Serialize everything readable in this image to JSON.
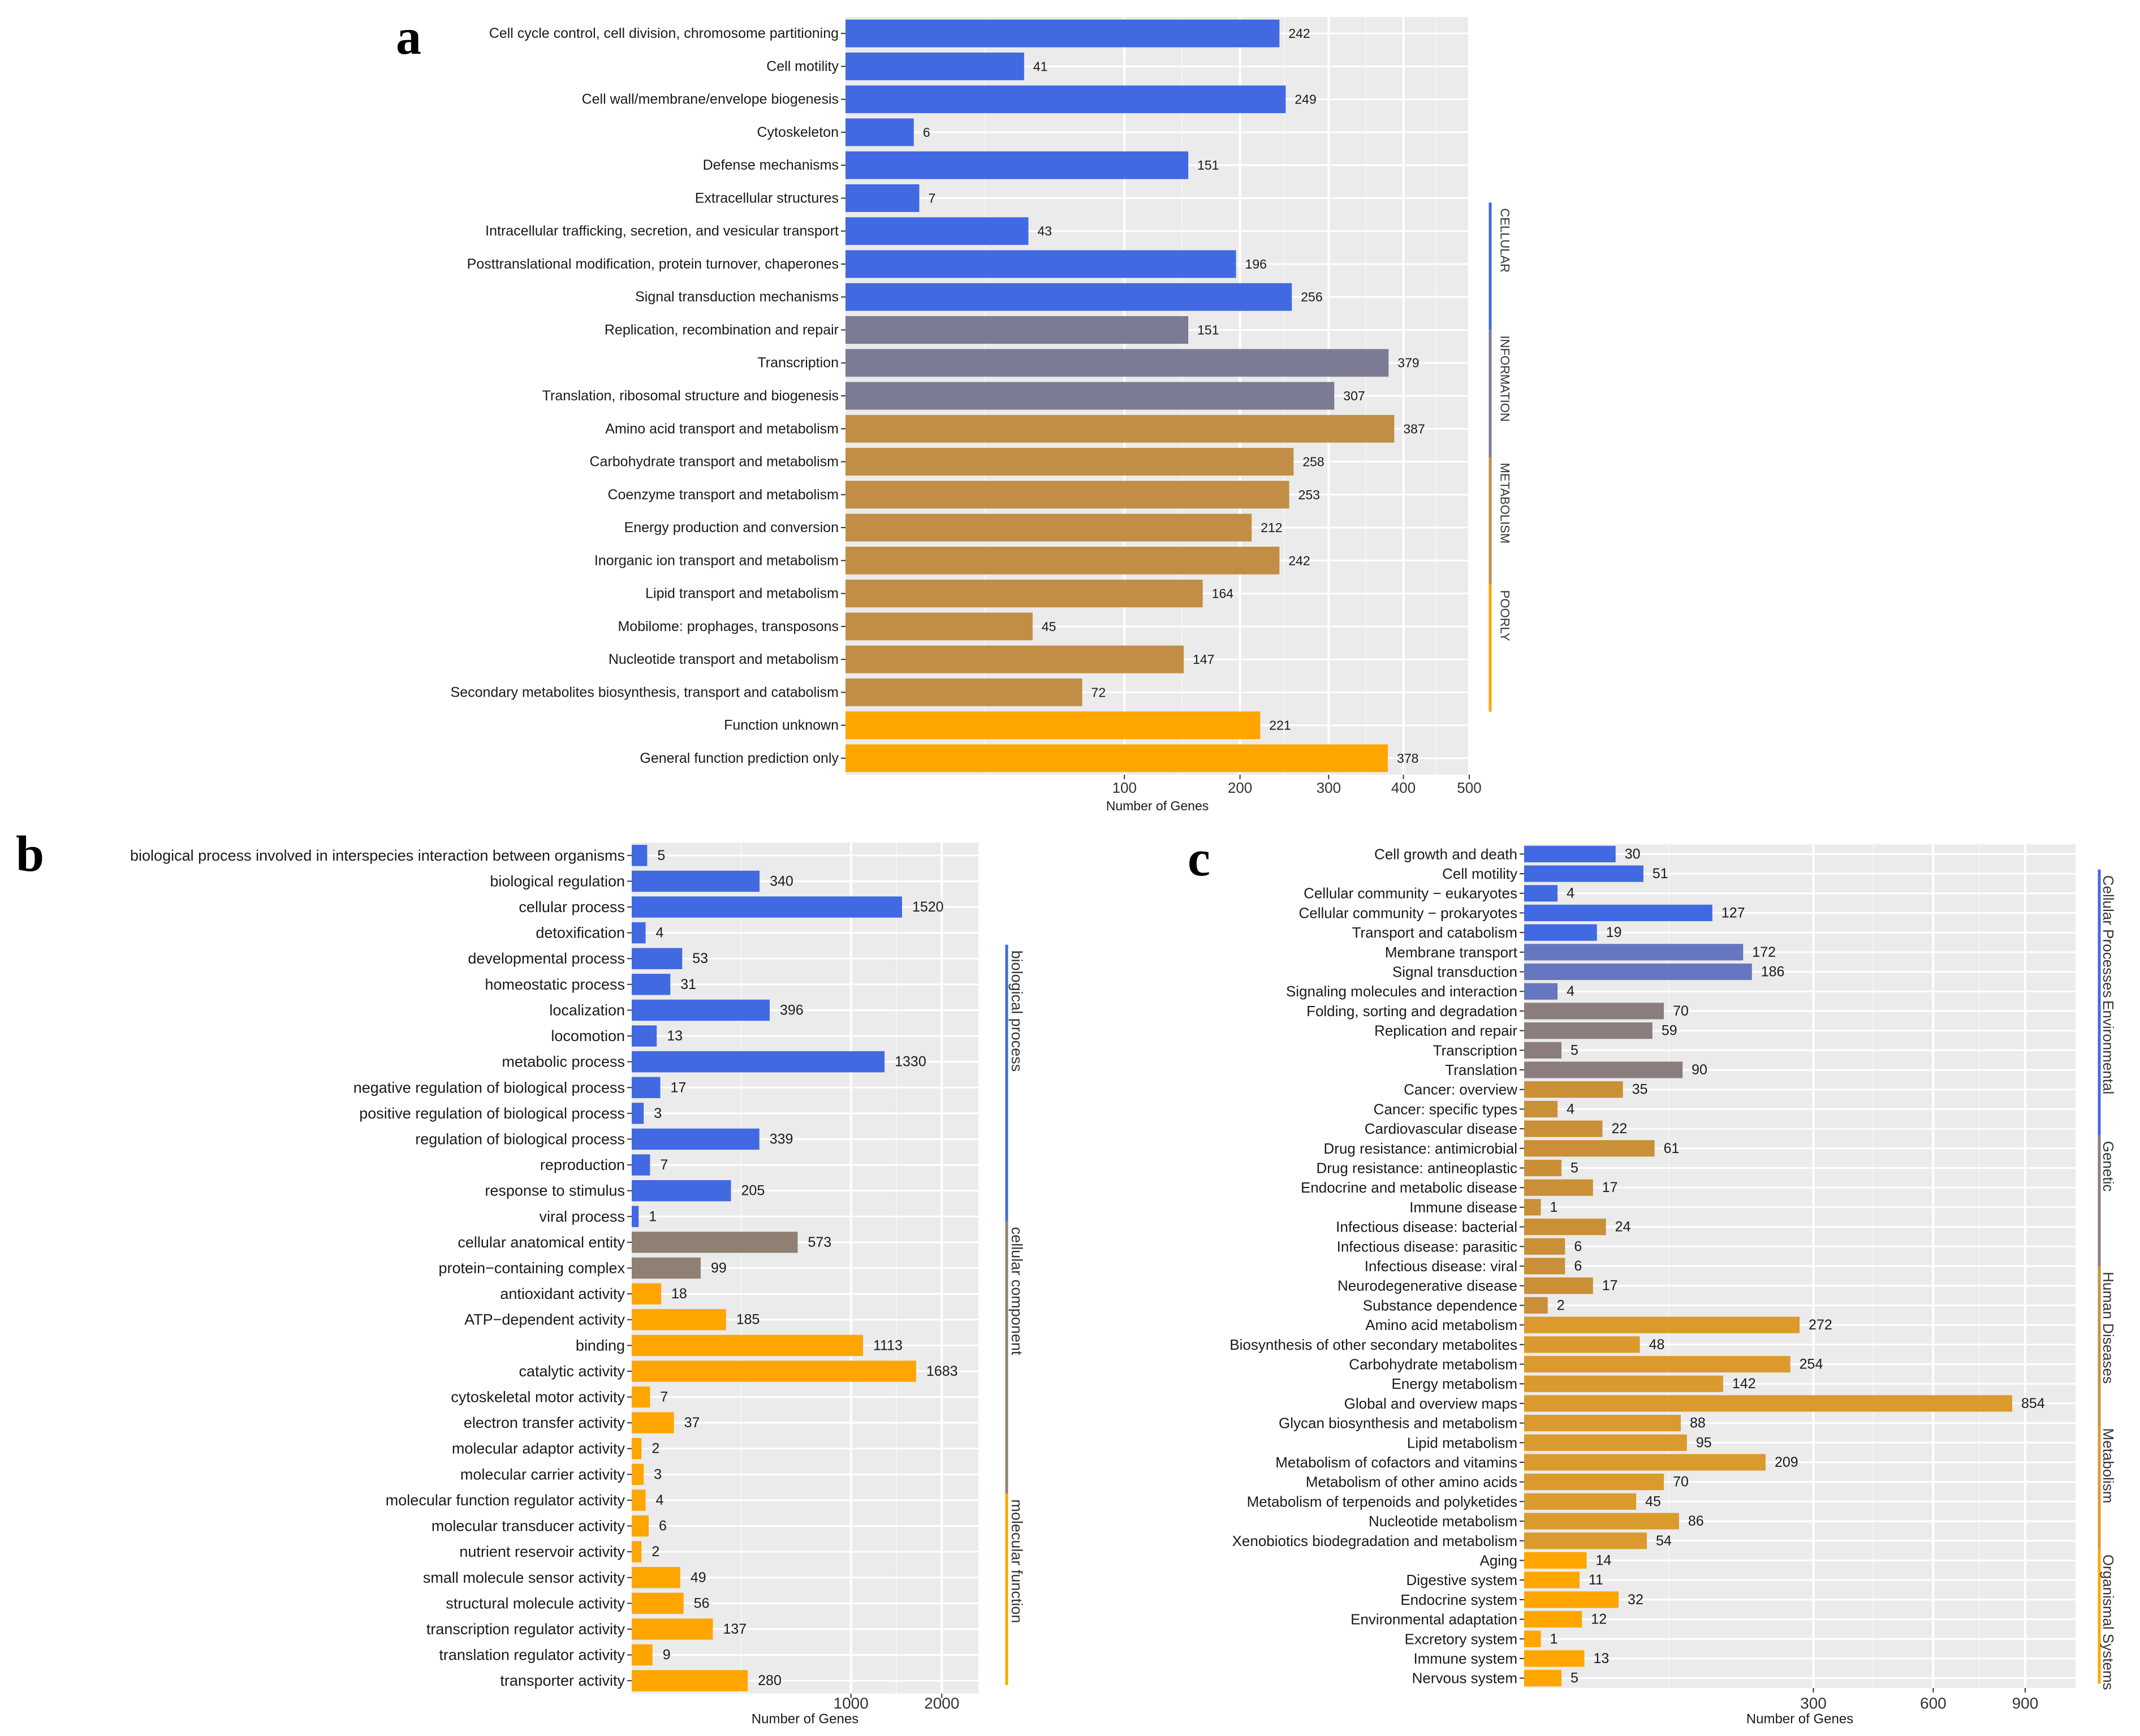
{
  "panels": [
    "a",
    "b",
    "c"
  ],
  "colors": {
    "cellular": "#4169E1",
    "information": "#7B7B93",
    "metabolism": "#C28E45",
    "poorly": "#FFA500",
    "bp": "#4169E1",
    "cc": "#8F8073",
    "mf": "#FFA500",
    "c_cellular": "#4169E1",
    "c_environmental": "#6676C0",
    "c_genetic": "#8B7D7D",
    "c_human": "#C99038",
    "c_metabolism": "#DB9A2E",
    "c_organismal": "#FFA500"
  },
  "chart_data": [
    {
      "panel": "a",
      "type": "bar",
      "orientation": "horizontal",
      "scale": "sqrt",
      "xlabel": "Number of Genes",
      "xticks": [
        100,
        200,
        300,
        400,
        500
      ],
      "xlim": [
        0,
        500
      ],
      "groups": [
        {
          "name": "CELLULAR",
          "color_key": "cellular"
        },
        {
          "name": "INFORMATION",
          "color_key": "information"
        },
        {
          "name": "METABOLISM",
          "color_key": "metabolism"
        },
        {
          "name": "POORLY",
          "color_key": "poorly"
        }
      ],
      "categories": [
        {
          "label": "Cell cycle control, cell division, chromosome partitioning",
          "value": 242,
          "group": "cellular"
        },
        {
          "label": "Cell motility",
          "value": 41,
          "group": "cellular"
        },
        {
          "label": "Cell wall/membrane/envelope biogenesis",
          "value": 249,
          "group": "cellular"
        },
        {
          "label": "Cytoskeleton",
          "value": 6,
          "group": "cellular"
        },
        {
          "label": "Defense mechanisms",
          "value": 151,
          "group": "cellular"
        },
        {
          "label": "Extracellular structures",
          "value": 7,
          "group": "cellular"
        },
        {
          "label": "Intracellular trafficking, secretion, and vesicular transport",
          "value": 43,
          "group": "cellular"
        },
        {
          "label": "Posttranslational modification, protein turnover, chaperones",
          "value": 196,
          "group": "cellular"
        },
        {
          "label": "Signal transduction mechanisms",
          "value": 256,
          "group": "cellular"
        },
        {
          "label": "Replication, recombination and repair",
          "value": 151,
          "group": "information"
        },
        {
          "label": "Transcription",
          "value": 379,
          "group": "information"
        },
        {
          "label": "Translation, ribosomal structure and biogenesis",
          "value": 307,
          "group": "information"
        },
        {
          "label": "Amino acid transport and metabolism",
          "value": 387,
          "group": "metabolism"
        },
        {
          "label": "Carbohydrate transport and metabolism",
          "value": 258,
          "group": "metabolism"
        },
        {
          "label": "Coenzyme transport and metabolism",
          "value": 253,
          "group": "metabolism"
        },
        {
          "label": "Energy production and conversion",
          "value": 212,
          "group": "metabolism"
        },
        {
          "label": "Inorganic ion transport and metabolism",
          "value": 242,
          "group": "metabolism"
        },
        {
          "label": "Lipid transport and metabolism",
          "value": 164,
          "group": "metabolism"
        },
        {
          "label": "Mobilome: prophages, transposons",
          "value": 45,
          "group": "metabolism"
        },
        {
          "label": "Nucleotide transport and metabolism",
          "value": 147,
          "group": "metabolism"
        },
        {
          "label": "Secondary metabolites biosynthesis, transport and catabolism",
          "value": 72,
          "group": "metabolism"
        },
        {
          "label": "Function unknown",
          "value": 221,
          "group": "poorly"
        },
        {
          "label": "General function prediction only",
          "value": 378,
          "group": "poorly"
        }
      ]
    },
    {
      "panel": "b",
      "type": "bar",
      "orientation": "horizontal",
      "scale": "sqrt",
      "xlabel": "Number of Genes",
      "xticks": [
        1000,
        2000
      ],
      "xlim": [
        0,
        2500
      ],
      "groups": [
        {
          "name": "biological process",
          "color_key": "bp"
        },
        {
          "name": "cellular component",
          "color_key": "cc"
        },
        {
          "name": "molecular function",
          "color_key": "mf"
        }
      ],
      "categories": [
        {
          "label": "biological process involved in interspecies interaction between organisms",
          "value": 5,
          "group": "bp"
        },
        {
          "label": "biological regulation",
          "value": 340,
          "group": "bp"
        },
        {
          "label": "cellular process",
          "value": 1520,
          "group": "bp"
        },
        {
          "label": "detoxification",
          "value": 4,
          "group": "bp"
        },
        {
          "label": "developmental process",
          "value": 53,
          "group": "bp"
        },
        {
          "label": "homeostatic process",
          "value": 31,
          "group": "bp"
        },
        {
          "label": "localization",
          "value": 396,
          "group": "bp"
        },
        {
          "label": "locomotion",
          "value": 13,
          "group": "bp"
        },
        {
          "label": "metabolic process",
          "value": 1330,
          "group": "bp"
        },
        {
          "label": "negative regulation of biological process",
          "value": 17,
          "group": "bp"
        },
        {
          "label": "positive regulation of biological process",
          "value": 3,
          "group": "bp"
        },
        {
          "label": "regulation of biological process",
          "value": 339,
          "group": "bp"
        },
        {
          "label": "reproduction",
          "value": 7,
          "group": "bp"
        },
        {
          "label": "response to stimulus",
          "value": 205,
          "group": "bp"
        },
        {
          "label": "viral process",
          "value": 1,
          "group": "bp"
        },
        {
          "label": "cellular anatomical entity",
          "value": 573,
          "group": "cc"
        },
        {
          "label": "protein−containing complex",
          "value": 99,
          "group": "cc"
        },
        {
          "label": "antioxidant activity",
          "value": 18,
          "group": "mf"
        },
        {
          "label": "ATP−dependent activity",
          "value": 185,
          "group": "mf"
        },
        {
          "label": "binding",
          "value": 1113,
          "group": "mf"
        },
        {
          "label": "catalytic activity",
          "value": 1683,
          "group": "mf"
        },
        {
          "label": "cytoskeletal motor activity",
          "value": 7,
          "group": "mf"
        },
        {
          "label": "electron transfer activity",
          "value": 37,
          "group": "mf"
        },
        {
          "label": "molecular adaptor activity",
          "value": 2,
          "group": "mf"
        },
        {
          "label": "molecular carrier activity",
          "value": 3,
          "group": "mf"
        },
        {
          "label": "molecular function regulator activity",
          "value": 4,
          "group": "mf"
        },
        {
          "label": "molecular transducer activity",
          "value": 6,
          "group": "mf"
        },
        {
          "label": "nutrient reservoir activity",
          "value": 2,
          "group": "mf"
        },
        {
          "label": "small molecule sensor activity",
          "value": 49,
          "group": "mf"
        },
        {
          "label": "structural molecule activity",
          "value": 56,
          "group": "mf"
        },
        {
          "label": "transcription regulator activity",
          "value": 137,
          "group": "mf"
        },
        {
          "label": "translation regulator activity",
          "value": 9,
          "group": "mf"
        },
        {
          "label": "transporter activity",
          "value": 280,
          "group": "mf"
        }
      ]
    },
    {
      "panel": "c",
      "type": "bar",
      "orientation": "horizontal",
      "scale": "sqrt",
      "xlabel": "Number of Genes",
      "xticks": [
        300,
        600,
        900
      ],
      "xlim": [
        0,
        1090
      ],
      "groups": [
        {
          "name": "Cellular Processes",
          "color_key": "c_cellular"
        },
        {
          "name": "Environmental",
          "color_key": "c_environmental"
        },
        {
          "name": "Genetic",
          "color_key": "c_genetic"
        },
        {
          "name": "Human Diseases",
          "color_key": "c_human"
        },
        {
          "name": "Metabolism",
          "color_key": "c_metabolism"
        },
        {
          "name": "Organismal Systems",
          "color_key": "c_organismal"
        }
      ],
      "categories": [
        {
          "label": "Cell growth and death",
          "value": 30,
          "group": "c_cellular"
        },
        {
          "label": "Cell motility",
          "value": 51,
          "group": "c_cellular"
        },
        {
          "label": "Cellular community − eukaryotes",
          "value": 4,
          "group": "c_cellular"
        },
        {
          "label": "Cellular community − prokaryotes",
          "value": 127,
          "group": "c_cellular"
        },
        {
          "label": "Transport and catabolism",
          "value": 19,
          "group": "c_cellular"
        },
        {
          "label": "Membrane transport",
          "value": 172,
          "group": "c_environmental"
        },
        {
          "label": "Signal transduction",
          "value": 186,
          "group": "c_environmental"
        },
        {
          "label": "Signaling molecules and interaction",
          "value": 4,
          "group": "c_environmental"
        },
        {
          "label": "Folding, sorting and degradation",
          "value": 70,
          "group": "c_genetic"
        },
        {
          "label": "Replication and repair",
          "value": 59,
          "group": "c_genetic"
        },
        {
          "label": "Transcription",
          "value": 5,
          "group": "c_genetic"
        },
        {
          "label": "Translation",
          "value": 90,
          "group": "c_genetic"
        },
        {
          "label": "Cancer: overview",
          "value": 35,
          "group": "c_human"
        },
        {
          "label": "Cancer: specific types",
          "value": 4,
          "group": "c_human"
        },
        {
          "label": "Cardiovascular disease",
          "value": 22,
          "group": "c_human"
        },
        {
          "label": "Drug resistance: antimicrobial",
          "value": 61,
          "group": "c_human"
        },
        {
          "label": "Drug resistance: antineoplastic",
          "value": 5,
          "group": "c_human"
        },
        {
          "label": "Endocrine and metabolic disease",
          "value": 17,
          "group": "c_human"
        },
        {
          "label": "Immune disease",
          "value": 1,
          "group": "c_human"
        },
        {
          "label": "Infectious disease: bacterial",
          "value": 24,
          "group": "c_human"
        },
        {
          "label": "Infectious disease: parasitic",
          "value": 6,
          "group": "c_human"
        },
        {
          "label": "Infectious disease: viral",
          "value": 6,
          "group": "c_human"
        },
        {
          "label": "Neurodegenerative disease",
          "value": 17,
          "group": "c_human"
        },
        {
          "label": "Substance dependence",
          "value": 2,
          "group": "c_human"
        },
        {
          "label": "Amino acid metabolism",
          "value": 272,
          "group": "c_metabolism"
        },
        {
          "label": "Biosynthesis of other secondary metabolites",
          "value": 48,
          "group": "c_metabolism"
        },
        {
          "label": "Carbohydrate metabolism",
          "value": 254,
          "group": "c_metabolism"
        },
        {
          "label": "Energy metabolism",
          "value": 142,
          "group": "c_metabolism"
        },
        {
          "label": "Global and overview maps",
          "value": 854,
          "group": "c_metabolism"
        },
        {
          "label": "Glycan biosynthesis and metabolism",
          "value": 88,
          "group": "c_metabolism"
        },
        {
          "label": "Lipid metabolism",
          "value": 95,
          "group": "c_metabolism"
        },
        {
          "label": "Metabolism of cofactors and vitamins",
          "value": 209,
          "group": "c_metabolism"
        },
        {
          "label": "Metabolism of other amino acids",
          "value": 70,
          "group": "c_metabolism"
        },
        {
          "label": "Metabolism of terpenoids and polyketides",
          "value": 45,
          "group": "c_metabolism"
        },
        {
          "label": "Nucleotide metabolism",
          "value": 86,
          "group": "c_metabolism"
        },
        {
          "label": "Xenobiotics biodegradation and metabolism",
          "value": 54,
          "group": "c_metabolism"
        },
        {
          "label": "Aging",
          "value": 14,
          "group": "c_organismal"
        },
        {
          "label": "Digestive system",
          "value": 11,
          "group": "c_organismal"
        },
        {
          "label": "Endocrine system",
          "value": 32,
          "group": "c_organismal"
        },
        {
          "label": "Environmental adaptation",
          "value": 12,
          "group": "c_organismal"
        },
        {
          "label": "Excretory system",
          "value": 1,
          "group": "c_organismal"
        },
        {
          "label": "Immune system",
          "value": 13,
          "group": "c_organismal"
        },
        {
          "label": "Nervous system",
          "value": 5,
          "group": "c_organismal"
        }
      ]
    }
  ]
}
